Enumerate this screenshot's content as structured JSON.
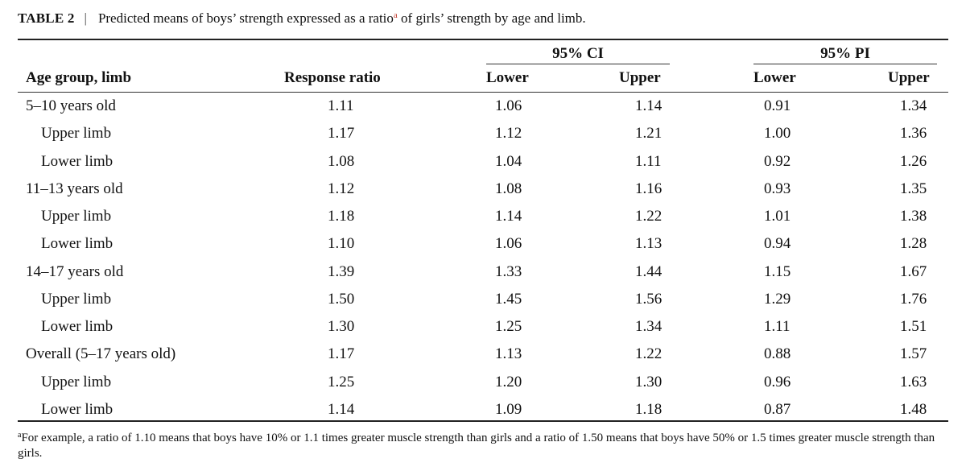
{
  "caption": {
    "label": "TABLE 2",
    "separator": "|",
    "text_before": "Predicted means of boys’ strength expressed as a ratio",
    "marker": "a",
    "text_after": " of girls’ strength by age and limb."
  },
  "header": {
    "group_ci": "95% CI",
    "group_pi": "95% PI",
    "col_age": "Age group, limb",
    "col_ratio": "Response ratio",
    "ci_lower": "Lower",
    "ci_upper": "Upper",
    "pi_lower": "Lower",
    "pi_upper": "Upper"
  },
  "rows": [
    {
      "label": "5–10 years old",
      "sub": false,
      "ratio": "1.11",
      "ci_lower": "1.06",
      "ci_upper": "1.14",
      "pi_lower": "0.91",
      "pi_upper": "1.34"
    },
    {
      "label": "Upper limb",
      "sub": true,
      "ratio": "1.17",
      "ci_lower": "1.12",
      "ci_upper": "1.21",
      "pi_lower": "1.00",
      "pi_upper": "1.36"
    },
    {
      "label": "Lower limb",
      "sub": true,
      "ratio": "1.08",
      "ci_lower": "1.04",
      "ci_upper": "1.11",
      "pi_lower": "0.92",
      "pi_upper": "1.26"
    },
    {
      "label": "11–13 years old",
      "sub": false,
      "ratio": "1.12",
      "ci_lower": "1.08",
      "ci_upper": "1.16",
      "pi_lower": "0.93",
      "pi_upper": "1.35"
    },
    {
      "label": "Upper limb",
      "sub": true,
      "ratio": "1.18",
      "ci_lower": "1.14",
      "ci_upper": "1.22",
      "pi_lower": "1.01",
      "pi_upper": "1.38"
    },
    {
      "label": "Lower limb",
      "sub": true,
      "ratio": "1.10",
      "ci_lower": "1.06",
      "ci_upper": "1.13",
      "pi_lower": "0.94",
      "pi_upper": "1.28"
    },
    {
      "label": "14–17 years old",
      "sub": false,
      "ratio": "1.39",
      "ci_lower": "1.33",
      "ci_upper": "1.44",
      "pi_lower": "1.15",
      "pi_upper": "1.67"
    },
    {
      "label": "Upper limb",
      "sub": true,
      "ratio": "1.50",
      "ci_lower": "1.45",
      "ci_upper": "1.56",
      "pi_lower": "1.29",
      "pi_upper": "1.76"
    },
    {
      "label": "Lower limb",
      "sub": true,
      "ratio": "1.30",
      "ci_lower": "1.25",
      "ci_upper": "1.34",
      "pi_lower": "1.11",
      "pi_upper": "1.51"
    },
    {
      "label": "Overall (5–17 years old)",
      "sub": false,
      "ratio": "1.17",
      "ci_lower": "1.13",
      "ci_upper": "1.22",
      "pi_lower": "0.88",
      "pi_upper": "1.57"
    },
    {
      "label": "Upper limb",
      "sub": true,
      "ratio": "1.25",
      "ci_lower": "1.20",
      "ci_upper": "1.30",
      "pi_lower": "0.96",
      "pi_upper": "1.63"
    },
    {
      "label": "Lower limb",
      "sub": true,
      "ratio": "1.14",
      "ci_lower": "1.09",
      "ci_upper": "1.18",
      "pi_lower": "0.87",
      "pi_upper": "1.48"
    }
  ],
  "footnote": {
    "marker": "a",
    "text": "For example, a ratio of 1.10 means that boys have 10% or 1.1 times greater muscle strength than girls and a ratio of 1.50 means that boys have 50% or 1.5 times greater muscle strength than girls."
  }
}
